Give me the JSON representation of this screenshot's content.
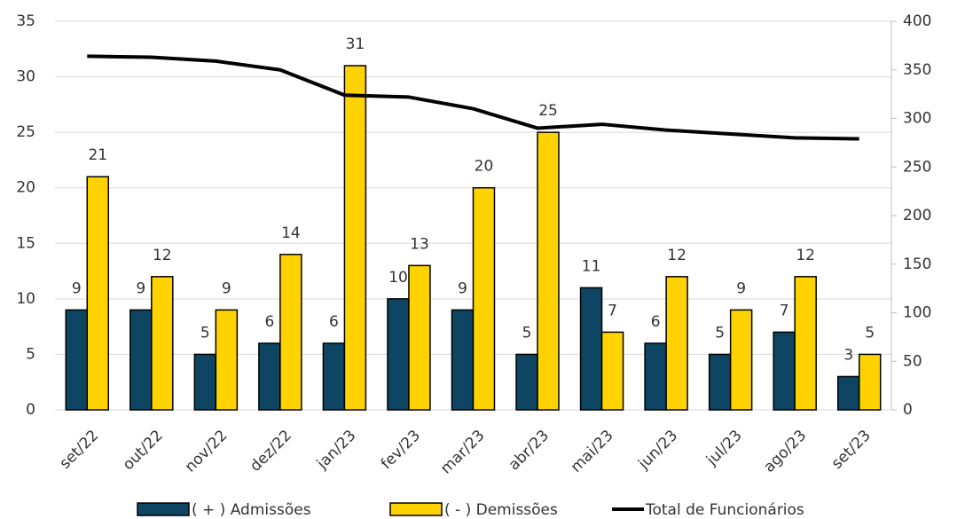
{
  "chart_data": {
    "type": "bar",
    "categories": [
      "set/22",
      "out/22",
      "nov/22",
      "dez/22",
      "jan/23",
      "fev/23",
      "mar/23",
      "abr/23",
      "mai/23",
      "jun/23",
      "jul/23",
      "ago/23",
      "set/23"
    ],
    "series": [
      {
        "name": "( + ) Admissões",
        "color": "#0e4563",
        "values": [
          9,
          9,
          5,
          6,
          6,
          10,
          9,
          5,
          11,
          6,
          5,
          7,
          3
        ]
      },
      {
        "name": "( - ) Demissões",
        "color": "#ffd200",
        "values": [
          21,
          12,
          9,
          14,
          31,
          13,
          20,
          25,
          7,
          12,
          9,
          12,
          5
        ]
      },
      {
        "name": "Total de Funcionários",
        "color": "#000000",
        "type": "line",
        "axis": "y2",
        "values": [
          364,
          363,
          359,
          350,
          324,
          322,
          310,
          290,
          294,
          288,
          284,
          280,
          279
        ]
      }
    ],
    "ylim": [
      0,
      35
    ],
    "yticks": [
      0,
      5,
      10,
      15,
      20,
      25,
      30,
      35
    ],
    "y2lim": [
      0,
      400
    ],
    "y2ticks": [
      0,
      50,
      100,
      150,
      200,
      250,
      300,
      350,
      400
    ],
    "grid": true,
    "legend": "bottom"
  }
}
